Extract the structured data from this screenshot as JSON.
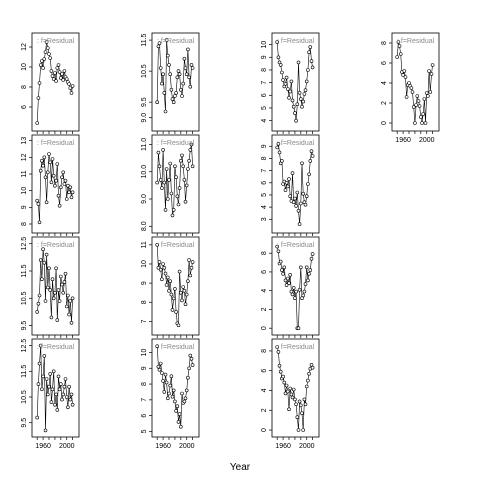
{
  "chart_data": {
    "type": "scatter",
    "xlabel": "Year",
    "legend_position": "top-left",
    "grid": false,
    "point_style": "open-circle",
    "line_style": "thin solid line joining the points",
    "panel_label": "f=Residual",
    "panels": [
      {
        "row": 0,
        "col": 0,
        "xlim": [
          1948,
          2014
        ],
        "ylim": [
          4.0,
          13.0
        ],
        "yticks": [
          "6",
          "8",
          "10",
          "12"
        ],
        "show_xticks": false,
        "x": [
          1950,
          1952,
          1954,
          1956,
          1958,
          1960,
          1962,
          1964,
          1966,
          1968,
          1970,
          1972,
          1974,
          1976,
          1978,
          1980,
          1982,
          1984,
          1986,
          1988,
          1990,
          1992,
          1994,
          1996,
          1998,
          2000,
          2002,
          2004,
          2006,
          2008,
          2010
        ],
        "y": [
          4.4,
          6.9,
          8.4,
          10.2,
          10.6,
          9.9,
          10.8,
          11.5,
          12.5,
          11.9,
          11.3,
          10.9,
          9.6,
          9.1,
          8.8,
          9.4,
          8.6,
          9.9,
          10.2,
          9.5,
          8.9,
          9.3,
          8.7,
          9.6,
          9.0,
          8.8,
          8.5,
          8.3,
          7.9,
          7.4,
          8.1
        ]
      },
      {
        "row": 0,
        "col": 1,
        "xlim": [
          1948,
          2014
        ],
        "ylim": [
          8.7,
          11.6
        ],
        "yticks": [
          "9.0",
          "9.5",
          "10.5",
          "11.5"
        ],
        "show_xticks": false,
        "x": [
          1950,
          1952,
          1954,
          1956,
          1958,
          1960,
          1962,
          1964,
          1966,
          1968,
          1970,
          1972,
          1974,
          1976,
          1978,
          1980,
          1982,
          1984,
          1986,
          1988,
          1990,
          1992,
          1994,
          1996,
          1998,
          2000,
          2002,
          2004,
          2006,
          2008,
          2010
        ],
        "y": [
          9.5,
          11.3,
          11.4,
          10.6,
          10.1,
          10.4,
          9.8,
          9.2,
          11.5,
          11.0,
          10.7,
          10.4,
          9.9,
          9.6,
          9.5,
          9.7,
          9.8,
          10.3,
          10.5,
          10.4,
          9.9,
          9.7,
          10.1,
          10.9,
          10.6,
          10.4,
          11.2,
          10.3,
          10.0,
          10.7,
          10.6
        ]
      },
      {
        "row": 0,
        "col": 2,
        "xlim": [
          1948,
          2014
        ],
        "ylim": [
          3.5,
          10.6
        ],
        "yticks": [
          "4",
          "5",
          "6",
          "7",
          "8",
          "9",
          "10"
        ],
        "show_xticks": false,
        "x": [
          1950,
          1952,
          1954,
          1956,
          1958,
          1960,
          1962,
          1964,
          1966,
          1968,
          1970,
          1972,
          1974,
          1976,
          1978,
          1980,
          1982,
          1984,
          1986,
          1988,
          1990,
          1992,
          1994,
          1996,
          1998,
          2000,
          2002,
          2004,
          2006,
          2008,
          2010
        ],
        "y": [
          10.2,
          9.0,
          8.6,
          8.4,
          7.8,
          7.2,
          6.7,
          6.9,
          7.4,
          6.5,
          5.8,
          6.3,
          7.1,
          5.6,
          5.1,
          4.6,
          4.0,
          5.3,
          8.6,
          6.2,
          5.7,
          5.1,
          5.5,
          6.1,
          6.4,
          7.1,
          8.0,
          9.4,
          9.8,
          8.7,
          8.2
        ]
      },
      {
        "row": 0,
        "col": 3,
        "xlim": [
          1948,
          2014
        ],
        "ylim": [
          -0.4,
          8.6
        ],
        "yticks": [
          "0",
          "2",
          "4",
          "6",
          "8"
        ],
        "show_xticks": true,
        "xticks": [
          "1960",
          "2000"
        ],
        "x": [
          1950,
          1952,
          1954,
          1956,
          1958,
          1960,
          1962,
          1964,
          1966,
          1968,
          1970,
          1972,
          1974,
          1976,
          1978,
          1980,
          1982,
          1984,
          1986,
          1988,
          1990,
          1992,
          1994,
          1996,
          1998,
          2000,
          2002,
          2004,
          2006,
          2008,
          2010
        ],
        "y": [
          6.6,
          8.1,
          7.7,
          6.9,
          5.1,
          4.8,
          5.2,
          4.6,
          2.6,
          3.8,
          4.0,
          3.7,
          3.5,
          3.1,
          1.6,
          0.0,
          1.8,
          2.7,
          2.2,
          1.7,
          0.6,
          0.0,
          0.9,
          2.4,
          0.0,
          3.0,
          2.7,
          5.2,
          3.1,
          4.9,
          5.8
        ]
      },
      {
        "row": 1,
        "col": 0,
        "xlim": [
          1948,
          2014
        ],
        "ylim": [
          7.7,
          13.1
        ],
        "yticks": [
          "8",
          "9",
          "10",
          "11",
          "12",
          "13"
        ],
        "show_xticks": false,
        "x": [
          1950,
          1952,
          1954,
          1956,
          1958,
          1960,
          1962,
          1964,
          1966,
          1968,
          1970,
          1972,
          1974,
          1976,
          1978,
          1980,
          1982,
          1984,
          1986,
          1988,
          1990,
          1992,
          1994,
          1996,
          1998,
          2000,
          2002,
          2004,
          2006,
          2008,
          2010
        ],
        "y": [
          9.4,
          9.2,
          8.1,
          11.2,
          11.8,
          11.5,
          12.0,
          10.8,
          9.3,
          11.1,
          12.2,
          11.7,
          10.5,
          11.9,
          10.9,
          10.3,
          10.6,
          11.6,
          9.7,
          9.1,
          10.2,
          10.8,
          11.1,
          10.4,
          10.6,
          9.5,
          10.3,
          9.9,
          10.2,
          9.6,
          9.9
        ]
      },
      {
        "row": 1,
        "col": 1,
        "xlim": [
          1948,
          2014
        ],
        "ylim": [
          7.9,
          11.2
        ],
        "yticks": [
          "8.0",
          "9.0",
          "10.0",
          "11.0"
        ],
        "show_xticks": false,
        "x": [
          1950,
          1952,
          1954,
          1956,
          1958,
          1960,
          1962,
          1964,
          1966,
          1968,
          1970,
          1972,
          1974,
          1976,
          1978,
          1980,
          1982,
          1984,
          1986,
          1988,
          1990,
          1992,
          1994,
          1996,
          1998,
          2000,
          2002,
          2004,
          2006,
          2008,
          2010
        ],
        "y": [
          9.6,
          10.7,
          10.2,
          9.7,
          9.4,
          10.8,
          9.6,
          8.6,
          10.1,
          9.0,
          9.7,
          10.3,
          9.2,
          8.4,
          8.6,
          10.2,
          9.8,
          9.1,
          8.8,
          9.4,
          10.4,
          10.6,
          10.2,
          9.7,
          8.9,
          9.5,
          10.1,
          10.4,
          10.8,
          11.0,
          10.2
        ]
      },
      {
        "row": 1,
        "col": 2,
        "xlim": [
          1948,
          2014
        ],
        "ylim": [
          2.2,
          9.6
        ],
        "yticks": [
          "3",
          "4",
          "5",
          "6",
          "7",
          "8",
          "9"
        ],
        "show_xticks": false,
        "x": [
          1950,
          1952,
          1954,
          1956,
          1958,
          1960,
          1962,
          1964,
          1966,
          1968,
          1970,
          1972,
          1974,
          1976,
          1978,
          1980,
          1982,
          1984,
          1986,
          1988,
          1990,
          1992,
          1994,
          1996,
          1998,
          2000,
          2002,
          2004,
          2006,
          2008,
          2010
        ],
        "y": [
          8.9,
          9.2,
          8.5,
          7.6,
          7.8,
          5.9,
          6.1,
          5.4,
          6.0,
          5.7,
          6.3,
          4.9,
          4.5,
          6.8,
          4.4,
          4.7,
          4.1,
          5.2,
          3.7,
          2.6,
          4.3,
          7.6,
          5.1,
          4.4,
          4.2,
          4.9,
          5.9,
          6.7,
          7.8,
          8.6,
          8.2
        ]
      },
      {
        "row": 2,
        "col": 0,
        "xlim": [
          1948,
          2014
        ],
        "ylim": [
          9.3,
          12.6
        ],
        "yticks": [
          "9.5",
          "10.5",
          "11.5",
          "12.5"
        ],
        "show_xticks": false,
        "x": [
          1950,
          1952,
          1954,
          1956,
          1958,
          1960,
          1962,
          1964,
          1966,
          1968,
          1970,
          1972,
          1974,
          1976,
          1978,
          1980,
          1982,
          1984,
          1986,
          1988,
          1990,
          1992,
          1994,
          1996,
          1998,
          2000,
          2002,
          2004,
          2006,
          2008,
          2010
        ],
        "y": [
          10.0,
          10.3,
          10.6,
          11.9,
          11.2,
          12.3,
          11.8,
          10.4,
          12.1,
          10.9,
          11.6,
          10.8,
          9.8,
          11.2,
          10.5,
          10.7,
          11.6,
          9.7,
          10.8,
          10.4,
          11.3,
          11.0,
          10.7,
          11.1,
          11.4,
          10.2,
          10.6,
          9.9,
          10.4,
          9.6,
          10.5
        ]
      },
      {
        "row": 2,
        "col": 1,
        "xlim": [
          1948,
          2014
        ],
        "ylim": [
          6.5,
          11.2
        ],
        "yticks": [
          "7",
          "8",
          "9",
          "10",
          "11"
        ],
        "show_xticks": false,
        "x": [
          1950,
          1952,
          1954,
          1956,
          1958,
          1960,
          1962,
          1964,
          1966,
          1968,
          1970,
          1972,
          1974,
          1976,
          1978,
          1980,
          1982,
          1984,
          1986,
          1988,
          1990,
          1992,
          1994,
          1996,
          1998,
          2000,
          2002,
          2004,
          2006,
          2008,
          2010
        ],
        "y": [
          11.0,
          9.8,
          10.1,
          9.7,
          9.2,
          10.0,
          9.8,
          9.5,
          8.9,
          9.3,
          8.6,
          9.1,
          8.4,
          7.6,
          8.2,
          8.7,
          7.5,
          6.9,
          6.8,
          9.6,
          8.5,
          8.1,
          8.8,
          8.6,
          7.9,
          8.4,
          9.1,
          10.2,
          9.4,
          9.8,
          10.1
        ]
      },
      {
        "row": 2,
        "col": 2,
        "xlim": [
          1948,
          2014
        ],
        "ylim": [
          -0.3,
          9.3
        ],
        "yticks": [
          "0",
          "2",
          "4",
          "6",
          "8"
        ],
        "show_xticks": false,
        "x": [
          1950,
          1952,
          1954,
          1956,
          1958,
          1960,
          1962,
          1964,
          1966,
          1968,
          1970,
          1972,
          1974,
          1976,
          1978,
          1980,
          1982,
          1984,
          1986,
          1988,
          1990,
          1992,
          1994,
          1996,
          1998,
          2000,
          2002,
          2004,
          2006,
          2008,
          2010
        ],
        "y": [
          8.7,
          8.2,
          6.9,
          7.1,
          6.2,
          5.8,
          6.5,
          5.1,
          4.6,
          5.3,
          4.8,
          5.7,
          3.9,
          3.6,
          4.3,
          3.2,
          3.9,
          0.0,
          0.0,
          4.1,
          6.5,
          3.2,
          3.5,
          3.9,
          4.7,
          6.5,
          5.1,
          5.8,
          6.2,
          7.4,
          7.9
        ]
      },
      {
        "row": 3,
        "col": 0,
        "xlim": [
          1948,
          2014
        ],
        "ylim": [
          9.1,
          12.6
        ],
        "yticks": [
          "9.5",
          "10.5",
          "11.5",
          "12.5"
        ],
        "show_xticks": true,
        "xticks": [
          "1960",
          "2000"
        ],
        "x": [
          1950,
          1952,
          1954,
          1956,
          1958,
          1960,
          1962,
          1964,
          1966,
          1968,
          1970,
          1972,
          1974,
          1976,
          1978,
          1980,
          1982,
          1984,
          1986,
          1988,
          1990,
          1992,
          1994,
          1996,
          1998,
          2000,
          2002,
          2004,
          2006,
          2008,
          2010
        ],
        "y": [
          9.7,
          11.0,
          11.8,
          12.5,
          10.8,
          11.3,
          12.1,
          9.2,
          11.2,
          10.6,
          10.9,
          11.4,
          10.3,
          10.8,
          11.5,
          10.2,
          10.6,
          10.0,
          11.3,
          10.8,
          11.0,
          10.4,
          10.6,
          10.9,
          11.2,
          10.5,
          10.1,
          10.9,
          10.4,
          10.6,
          10.2
        ]
      },
      {
        "row": 3,
        "col": 1,
        "xlim": [
          1948,
          2014
        ],
        "ylim": [
          4.9,
          10.6
        ],
        "yticks": [
          "5",
          "6",
          "7",
          "8",
          "9",
          "10"
        ],
        "show_xticks": true,
        "xticks": [
          "1960",
          "2000"
        ],
        "x": [
          1950,
          1952,
          1954,
          1956,
          1958,
          1960,
          1962,
          1964,
          1966,
          1968,
          1970,
          1972,
          1974,
          1976,
          1978,
          1980,
          1982,
          1984,
          1986,
          1988,
          1990,
          1992,
          1994,
          1996,
          1998,
          2000,
          2002,
          2004,
          2006,
          2008,
          2010
        ],
        "y": [
          10.4,
          9.1,
          8.9,
          9.3,
          8.7,
          8.2,
          7.5,
          8.6,
          8.1,
          7.1,
          7.4,
          7.9,
          8.5,
          7.2,
          7.6,
          6.9,
          6.3,
          6.6,
          5.6,
          6.1,
          5.3,
          7.4,
          6.8,
          6.9,
          7.1,
          7.6,
          8.4,
          9.0,
          9.8,
          9.6,
          9.2
        ]
      },
      {
        "row": 3,
        "col": 2,
        "xlim": [
          1948,
          2014
        ],
        "ylim": [
          -0.3,
          8.8
        ],
        "yticks": [
          "0",
          "2",
          "4",
          "6",
          "8"
        ],
        "show_xticks": true,
        "xticks": [
          "1960",
          "2000"
        ],
        "x": [
          1950,
          1952,
          1954,
          1956,
          1958,
          1960,
          1962,
          1964,
          1966,
          1968,
          1970,
          1972,
          1974,
          1976,
          1978,
          1980,
          1982,
          1984,
          1986,
          1988,
          1990,
          1992,
          1994,
          1996,
          1998,
          2000,
          2002,
          2004,
          2006,
          2008,
          2010
        ],
        "y": [
          8.4,
          7.9,
          6.5,
          5.9,
          5.2,
          5.4,
          4.8,
          3.7,
          4.5,
          3.9,
          2.1,
          4.2,
          3.6,
          3.3,
          4.1,
          3.1,
          2.6,
          1.3,
          0.0,
          2.9,
          2.5,
          1.7,
          0.0,
          3.1,
          2.6,
          4.4,
          5.0,
          5.7,
          6.2,
          6.6,
          6.3
        ]
      }
    ]
  }
}
